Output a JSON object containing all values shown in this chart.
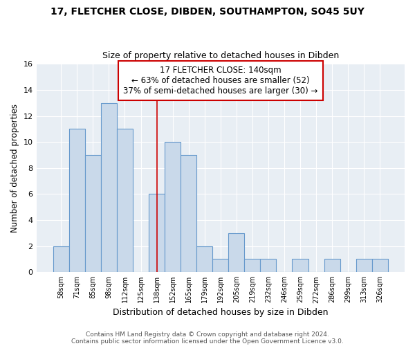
{
  "title": "17, FLETCHER CLOSE, DIBDEN, SOUTHAMPTON, SO45 5UY",
  "subtitle": "Size of property relative to detached houses in Dibden",
  "xlabel": "Distribution of detached houses by size in Dibden",
  "ylabel": "Number of detached properties",
  "bin_labels": [
    "58sqm",
    "71sqm",
    "85sqm",
    "98sqm",
    "112sqm",
    "125sqm",
    "138sqm",
    "152sqm",
    "165sqm",
    "179sqm",
    "192sqm",
    "205sqm",
    "219sqm",
    "232sqm",
    "246sqm",
    "259sqm",
    "272sqm",
    "286sqm",
    "299sqm",
    "313sqm",
    "326sqm"
  ],
  "bar_heights": [
    2,
    11,
    9,
    13,
    11,
    0,
    6,
    10,
    9,
    2,
    1,
    3,
    1,
    1,
    0,
    1,
    0,
    1,
    0,
    1,
    1
  ],
  "bar_color": "#c9d9ea",
  "bar_edge_color": "#6699cc",
  "annotation_box_color": "#ffffff",
  "annotation_border_color": "#cc0000",
  "vline_color": "#cc0000",
  "vline_index": 6,
  "annotation_text_line1": "17 FLETCHER CLOSE: 140sqm",
  "annotation_text_line2": "← 63% of detached houses are smaller (52)",
  "annotation_text_line3": "37% of semi-detached houses are larger (30) →",
  "ylim": [
    0,
    16
  ],
  "yticks": [
    0,
    2,
    4,
    6,
    8,
    10,
    12,
    14,
    16
  ],
  "plot_bg_color": "#e8eef4",
  "fig_bg_color": "#ffffff",
  "grid_color": "#ffffff",
  "footer_line1": "Contains HM Land Registry data © Crown copyright and database right 2024.",
  "footer_line2": "Contains public sector information licensed under the Open Government Licence v3.0."
}
